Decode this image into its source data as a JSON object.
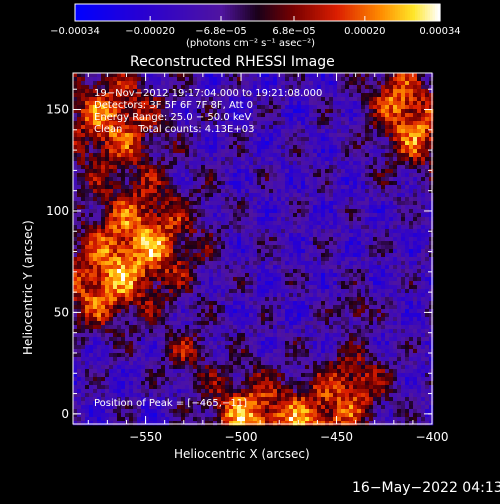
{
  "chart_data": {
    "type": "heatmap",
    "title": "Reconstructed RHESSI Image",
    "xlabel": "Heliocentric X (arcsec)",
    "ylabel": "Heliocentric Y (arcsec)",
    "xlim": [
      -588,
      -400
    ],
    "ylim": [
      -5,
      168
    ],
    "x_ticks": [
      -550,
      -500,
      -450,
      -400
    ],
    "y_ticks": [
      0,
      50,
      100,
      150
    ],
    "x_tick_labels": [
      "−550",
      "−500",
      "−450",
      "−400"
    ],
    "y_tick_labels": [
      "0",
      "50",
      "100",
      "150"
    ],
    "colorbar": {
      "range": [
        -0.00034,
        0.00034
      ],
      "ticks": [
        -0.00034,
        -0.0002,
        -6.8e-05,
        6.8e-05,
        0.0002,
        0.00034
      ],
      "tick_labels": [
        "−0.00034",
        "−0.00020",
        "−6.8e−05",
        "6.8e−05",
        "0.00020",
        "0.00034"
      ],
      "units_label": "(photons cm⁻² s⁻¹ asec⁻²)"
    },
    "annotations": {
      "time": "19−Nov−2012 19:17:04.000 to 19:21:08.000",
      "detectors": "Detectors: 3F 5F 6F 7F 8F, Att 0",
      "energy": "Energy Range: 25.0 − 50.0 keV",
      "clean": "Clean     Total counts: 4.13E+03",
      "peak": "Position of Peak = [−465,−11]"
    },
    "sources": [
      {
        "x": -552,
        "y": 85,
        "sigma": 20,
        "amplitude": 0.00034
      },
      {
        "x": -568,
        "y": 145,
        "sigma": 18,
        "amplitude": 0.0003
      },
      {
        "x": -575,
        "y": 60,
        "sigma": 14,
        "amplitude": 0.00024
      },
      {
        "x": -500,
        "y": 0,
        "sigma": 14,
        "amplitude": 0.00028
      },
      {
        "x": -465,
        "y": -11,
        "sigma": 18,
        "amplitude": 0.00034
      },
      {
        "x": -440,
        "y": 15,
        "sigma": 12,
        "amplitude": 0.00022
      },
      {
        "x": -408,
        "y": 140,
        "sigma": 14,
        "amplitude": 0.0003
      },
      {
        "x": -420,
        "y": 160,
        "sigma": 10,
        "amplitude": 0.0002
      },
      {
        "x": -440,
        "y": 52,
        "sigma": 5,
        "amplitude": 0.00022
      },
      {
        "x": -528,
        "y": 30,
        "sigma": 9,
        "amplitude": 0.00016
      }
    ]
  },
  "footer": {
    "date": "16−May−2022 04:13"
  }
}
